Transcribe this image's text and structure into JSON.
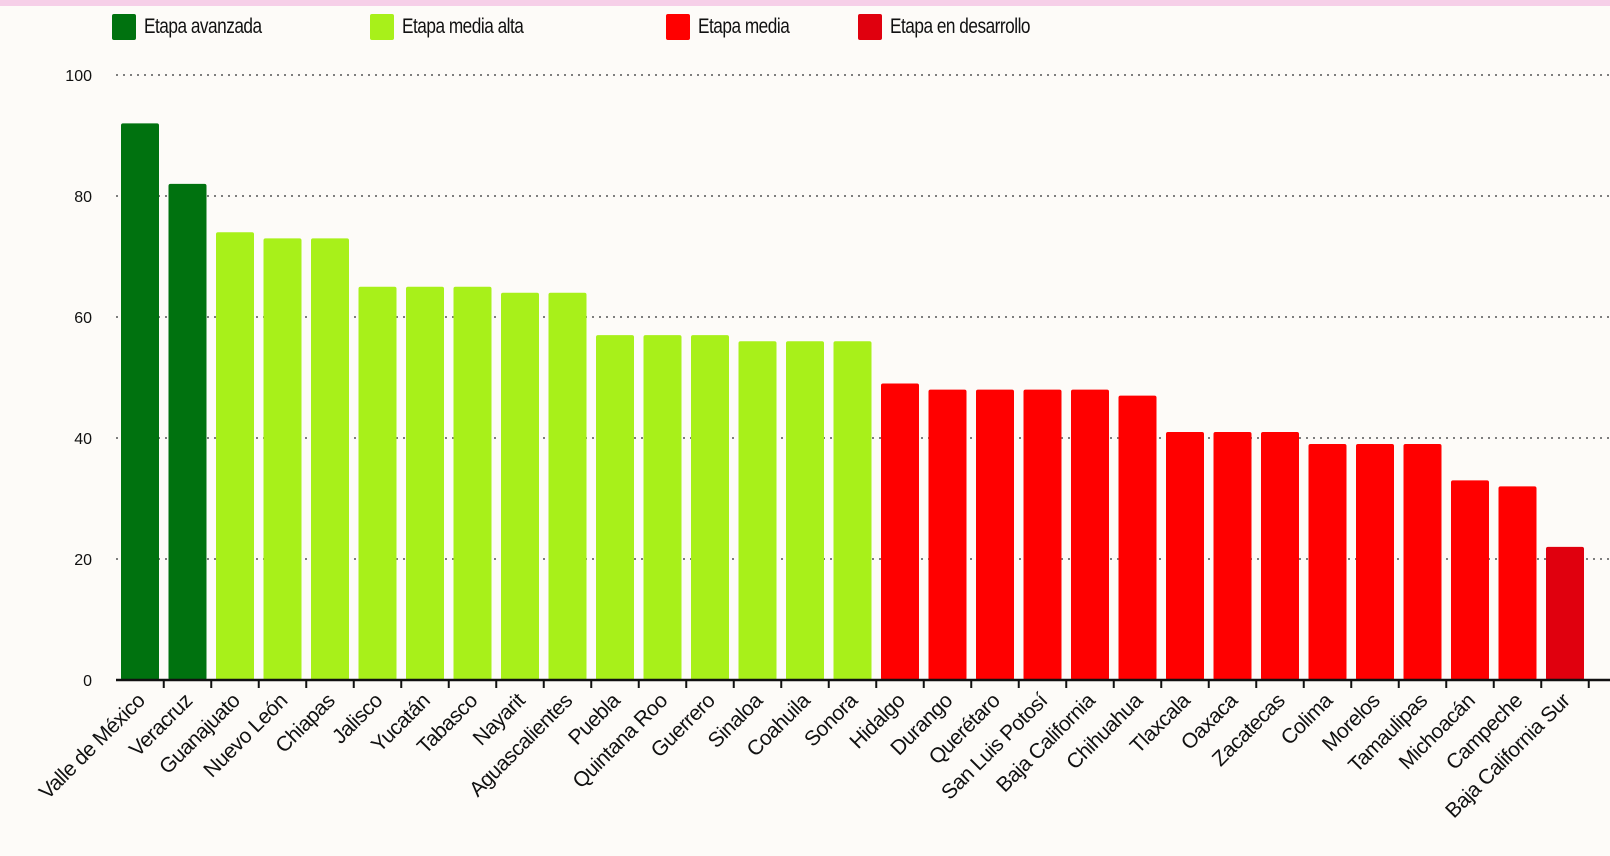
{
  "legend": [
    {
      "label": "Etapa avanzada",
      "color": "#00720f"
    },
    {
      "label": "Etapa media alta",
      "color": "#a8f01a"
    },
    {
      "label": "Etapa media",
      "color": "#ff0000"
    },
    {
      "label": "Etapa en desarrollo",
      "color": "#e0000e"
    }
  ],
  "chart_data": {
    "type": "bar",
    "title": "",
    "xlabel": "",
    "ylabel": "",
    "ylim": [
      0,
      100
    ],
    "yticks": [
      0,
      20,
      40,
      60,
      80,
      100
    ],
    "grid": true,
    "legend_position": "top",
    "categories": [
      "Valle de México",
      "Veracruz",
      "Guanajuato",
      "Nuevo León",
      "Chiapas",
      "Jalisco",
      "Yucatán",
      "Tabasco",
      "Nayarit",
      "Aguascalientes",
      "Puebla",
      "Quintana Roo",
      "Guerrero",
      "Sinaloa",
      "Coahuila",
      "Sonora",
      "Hidalgo",
      "Durango",
      "Querétaro",
      "San Luis Potosí",
      "Baja California",
      "Chihuahua",
      "Tlaxcala",
      "Oaxaca",
      "Zacatecas",
      "Colima",
      "Morelos",
      "Tamaulipas",
      "Michoacán",
      "Campeche",
      "Baja California Sur"
    ],
    "values": [
      92,
      82,
      74,
      73,
      73,
      65,
      65,
      65,
      64,
      64,
      57,
      57,
      57,
      56,
      56,
      56,
      49,
      48,
      48,
      48,
      48,
      47,
      41,
      41,
      41,
      39,
      39,
      39,
      33,
      32,
      22
    ],
    "groups": [
      0,
      0,
      1,
      1,
      1,
      1,
      1,
      1,
      1,
      1,
      1,
      1,
      1,
      1,
      1,
      1,
      2,
      2,
      2,
      2,
      2,
      2,
      2,
      2,
      2,
      2,
      2,
      2,
      2,
      2,
      3
    ],
    "group_colors": [
      "#00720f",
      "#a8f01a",
      "#ff0000",
      "#e0000e"
    ]
  }
}
